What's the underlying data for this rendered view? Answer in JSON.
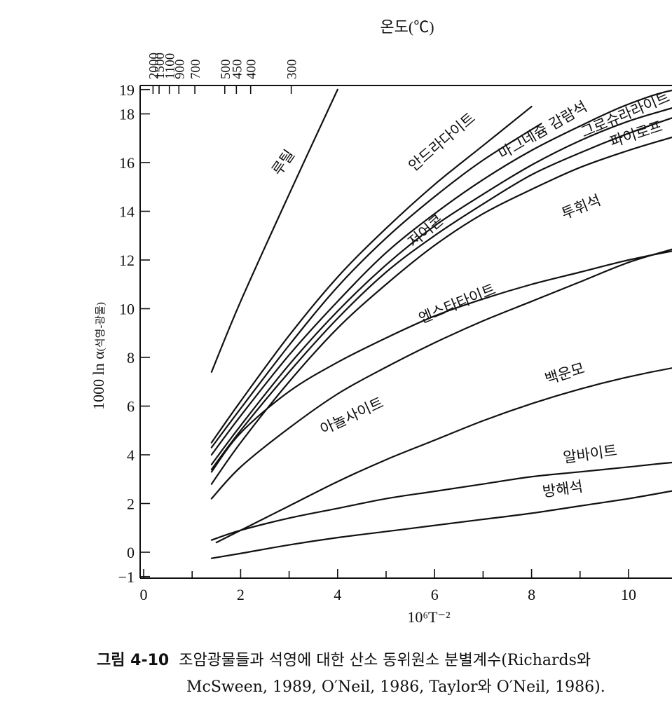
{
  "chart_data": {
    "type": "line",
    "top_axis_title": "온도(℃)",
    "xlabel": "10⁶T⁻²",
    "ylabel_main": "1000 ln α",
    "ylabel_sub": "(석영-광물)",
    "xlim": [
      0,
      12
    ],
    "ylim": [
      -1,
      19
    ],
    "x_ticks": [
      0,
      2,
      4,
      6,
      8,
      10
    ],
    "x_minor_ticks": [
      1,
      3,
      5,
      7,
      9,
      11
    ],
    "y_ticks": [
      -1,
      0,
      2,
      4,
      6,
      8,
      10,
      12,
      14,
      16,
      18,
      19
    ],
    "top_ticks": [
      "2000",
      "1500",
      "1100",
      "900",
      "700",
      "500",
      "450",
      "400",
      "300"
    ],
    "series": [
      {
        "name": "루틸",
        "x": [
          1.4,
          2.0,
          3.0,
          4.0
        ],
        "y": [
          7.4,
          10.3,
          14.7,
          19.0
        ]
      },
      {
        "name": "안드라다이트",
        "x": [
          1.4,
          2.0,
          3.0,
          4.0,
          5.0,
          6.0,
          7.0,
          8.0
        ],
        "y": [
          4.5,
          6.2,
          8.9,
          11.3,
          13.3,
          15.1,
          16.7,
          18.3
        ]
      },
      {
        "name": "저어콘",
        "x": [
          1.4,
          2.0,
          3.0,
          4.0,
          5.0,
          6.0,
          7.0,
          8.2
        ],
        "y": [
          4.3,
          5.9,
          8.5,
          10.9,
          12.9,
          14.6,
          16.1,
          17.6
        ]
      },
      {
        "name": "마그네슘 감람석",
        "x": [
          1.4,
          2.0,
          3.0,
          4.0,
          5.0,
          6.0,
          7.0,
          8.0,
          9.0,
          10.0,
          11.0,
          12.0
        ],
        "y": [
          4.0,
          5.6,
          8.1,
          10.3,
          12.3,
          13.9,
          15.3,
          16.5,
          17.5,
          18.4,
          19.0,
          19.0
        ]
      },
      {
        "name": "그로슈라라이트",
        "x": [
          1.4,
          2.0,
          3.0,
          4.0,
          5.0,
          6.0,
          7.0,
          8.0,
          9.0,
          10.0,
          11.0,
          12.0
        ],
        "y": [
          3.6,
          5.2,
          7.7,
          9.9,
          11.8,
          13.4,
          14.7,
          15.9,
          16.9,
          17.7,
          18.3,
          18.9
        ]
      },
      {
        "name": "파이로프",
        "x": [
          1.4,
          2.0,
          3.0,
          4.0,
          5.0,
          6.0,
          7.0,
          8.0,
          9.0,
          10.0,
          11.0,
          12.0
        ],
        "y": [
          3.4,
          5.0,
          7.4,
          9.6,
          11.5,
          13.0,
          14.3,
          15.5,
          16.4,
          17.2,
          17.9,
          18.5
        ]
      },
      {
        "name": "투휘석",
        "x": [
          1.4,
          2.0,
          3.0,
          4.0,
          5.0,
          6.0,
          7.0,
          8.0,
          9.0,
          10.0,
          11.0,
          12.0
        ],
        "y": [
          2.8,
          4.5,
          7.0,
          9.2,
          11.0,
          12.6,
          13.9,
          14.9,
          15.8,
          16.5,
          17.1,
          17.7
        ]
      },
      {
        "name": "엔스타타이트",
        "x": [
          1.4,
          2.0,
          3.0,
          4.0,
          5.0,
          6.0,
          7.0,
          8.0,
          9.0,
          10.0,
          11.0,
          12.0
        ],
        "y": [
          3.3,
          4.9,
          6.6,
          7.8,
          8.8,
          9.7,
          10.4,
          11.0,
          11.5,
          12.0,
          12.4,
          12.7
        ]
      },
      {
        "name": "아놀사이트",
        "x": [
          1.4,
          2.0,
          3.0,
          4.0,
          5.0,
          6.0,
          7.0,
          8.0,
          9.0,
          10.0,
          11.0,
          12.0
        ],
        "y": [
          2.2,
          3.5,
          5.1,
          6.5,
          7.6,
          8.6,
          9.5,
          10.3,
          11.1,
          11.9,
          12.5,
          13.1
        ]
      },
      {
        "name": "백운모",
        "x": [
          1.5,
          2.0,
          3.0,
          4.0,
          5.0,
          6.0,
          7.0,
          8.0,
          9.0,
          10.0,
          11.0,
          12.0
        ],
        "y": [
          0.4,
          0.9,
          1.9,
          2.9,
          3.8,
          4.6,
          5.4,
          6.1,
          6.7,
          7.2,
          7.6,
          7.9
        ]
      },
      {
        "name": "알바이트",
        "x": [
          1.4,
          2.0,
          3.0,
          4.0,
          5.0,
          6.0,
          7.0,
          8.0,
          9.0,
          10.0,
          11.0,
          12.0
        ],
        "y": [
          0.5,
          0.9,
          1.4,
          1.8,
          2.2,
          2.5,
          2.8,
          3.1,
          3.3,
          3.5,
          3.7,
          3.8
        ]
      },
      {
        "name": "방해석",
        "x": [
          1.4,
          2.0,
          3.0,
          4.0,
          5.0,
          6.0,
          7.0,
          8.0,
          9.0,
          10.0,
          11.0,
          12.0
        ],
        "y": [
          -0.25,
          -0.05,
          0.3,
          0.6,
          0.85,
          1.1,
          1.35,
          1.6,
          1.9,
          2.2,
          2.55,
          2.9
        ]
      }
    ]
  },
  "caption": {
    "label": "그림 4-10",
    "line1": "조암광물들과 석영에 대한 산소 동위원소 분별계수(Richards와",
    "line2": "McSween, 1989, O′Neil, 1986, Taylor와 O′Neil, 1986)."
  }
}
